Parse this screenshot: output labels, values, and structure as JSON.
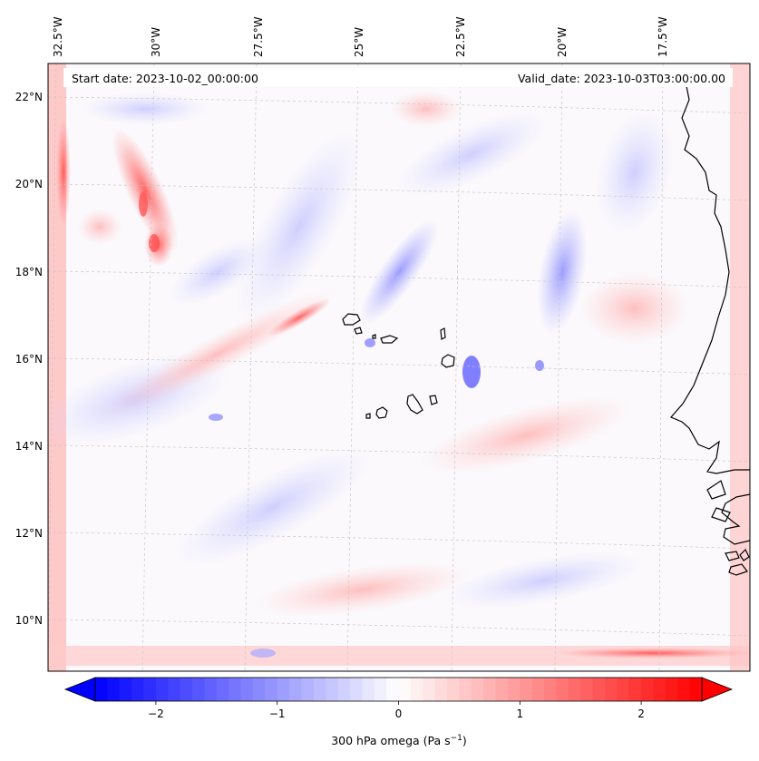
{
  "map": {
    "start_date_text": "Start date: 2023-10-02_00:00:00",
    "valid_date_text": "Valid_date: 2023-10-03T03:00:00.00",
    "longitude_labels": [
      "32.5°W",
      "30°W",
      "27.5°W",
      "25°W",
      "22.5°W",
      "20°W",
      "17.5°W"
    ],
    "latitude_labels": [
      "22°N",
      "20°N",
      "18°N",
      "16°N",
      "14°N",
      "12°N",
      "10°N"
    ],
    "field_variable": "300 hPa omega",
    "colormap": "bwr",
    "coastline_color": "#000000",
    "gridline_color": "#c8c8c8"
  },
  "colorbar": {
    "label_main": "300 hPa omega (Pa s",
    "label_exp": "−1",
    "label_close": ")",
    "tick_labels": [
      "−2",
      "−1",
      "0",
      "1",
      "2"
    ],
    "tick_values": [
      -2,
      -1,
      0,
      1,
      2
    ],
    "range": [
      -2.5,
      2.5
    ],
    "extend": "both",
    "color_min": "#0000ff",
    "color_mid": "#ffffff",
    "color_max": "#ff0000"
  }
}
